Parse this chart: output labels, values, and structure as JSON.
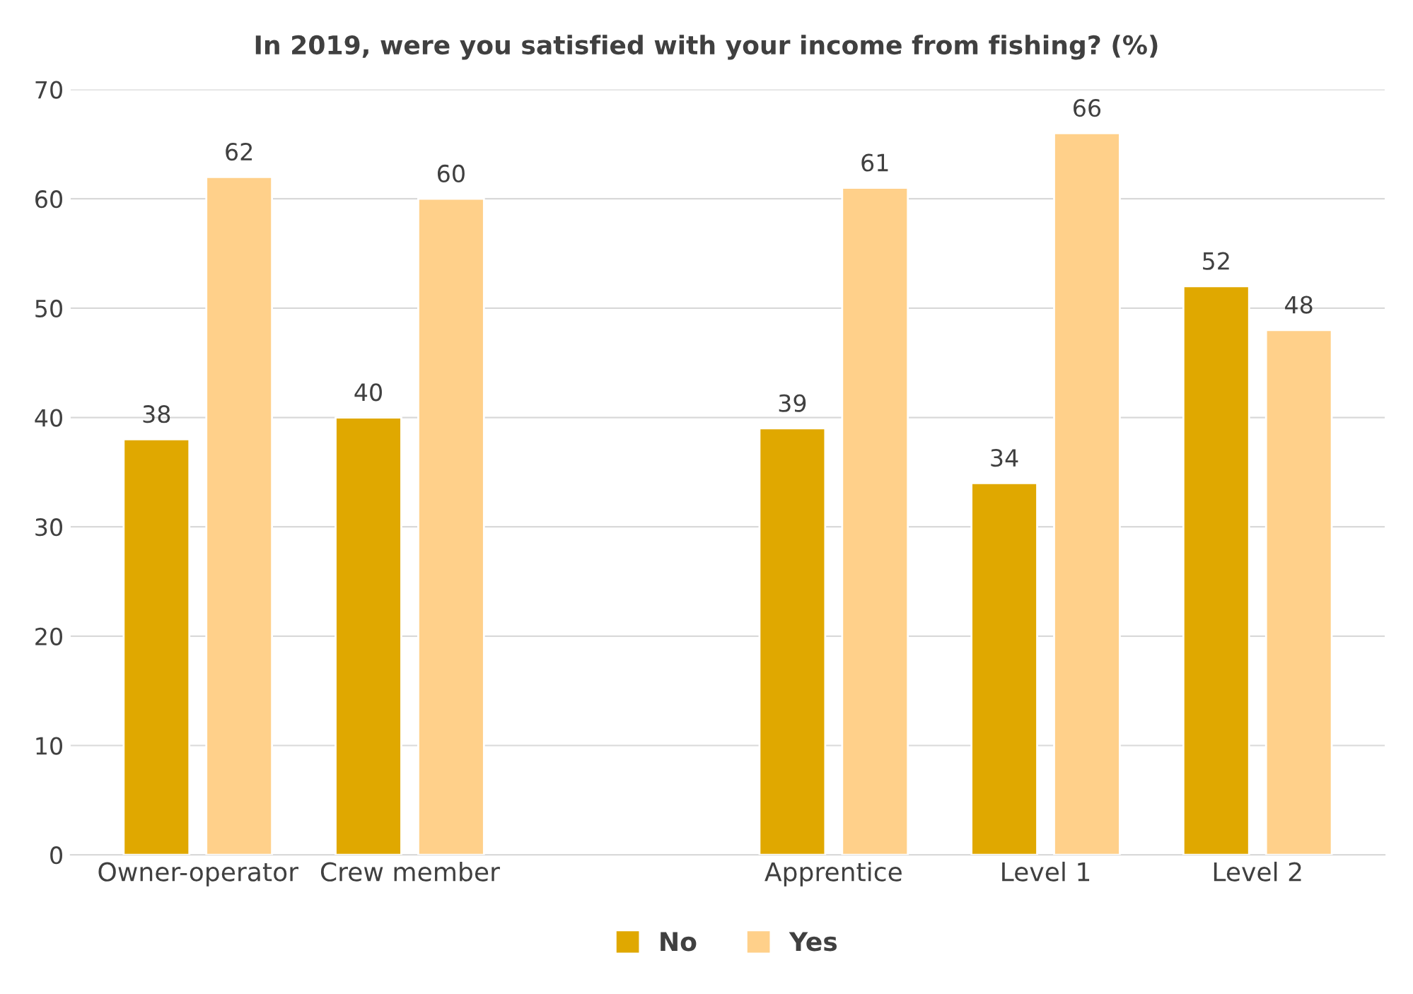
{
  "chart_data": {
    "type": "bar",
    "title": "In 2019, were you satisfied with your income from fishing? (%)",
    "categories": [
      "Owner-operator",
      "Crew member",
      null,
      "Apprentice",
      "Level 1",
      "Level 2"
    ],
    "series": [
      {
        "name": "No",
        "color": "#e0a800",
        "values": [
          38,
          40,
          null,
          39,
          34,
          52
        ]
      },
      {
        "name": "Yes",
        "color": "#ffd08a",
        "values": [
          62,
          60,
          null,
          61,
          66,
          48
        ]
      }
    ],
    "ylim": [
      0,
      70
    ],
    "yticks": [
      0,
      10,
      20,
      30,
      40,
      50,
      60,
      70
    ],
    "grid": "y",
    "legend": "bottom",
    "data_labels": true
  }
}
